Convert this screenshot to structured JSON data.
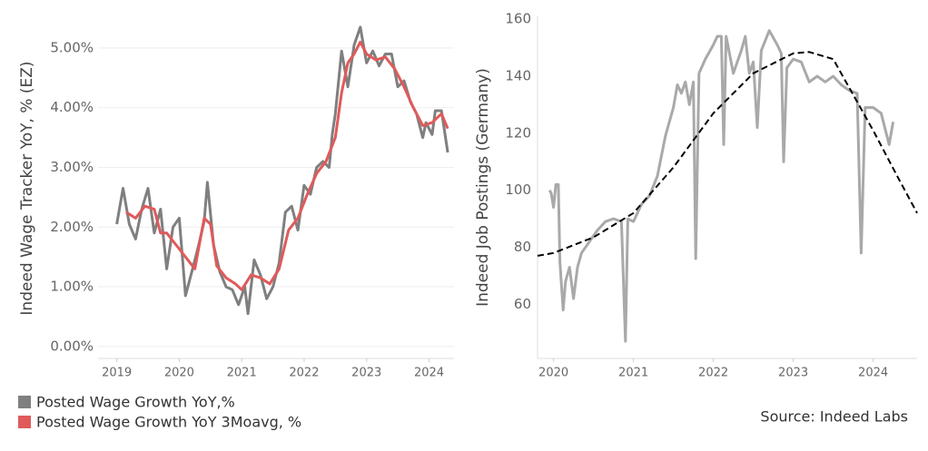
{
  "chart_data": [
    {
      "type": "line",
      "y_label": "Indeed Wage Tracker YoY, % (EZ)",
      "grid": true,
      "legend": "bottom-left",
      "xlim": [
        2018.7,
        2024.4
      ],
      "ylim": [
        -0.2,
        5.5
      ],
      "xticks": [
        2019,
        2020,
        2021,
        2022,
        2023,
        2024
      ],
      "yticks": [
        {
          "value": 0,
          "label": "0.00%"
        },
        {
          "value": 1,
          "label": "1.00%"
        },
        {
          "value": 2,
          "label": "2.00%"
        },
        {
          "value": 3,
          "label": "3.00%"
        },
        {
          "value": 4,
          "label": "4.00%"
        },
        {
          "value": 5,
          "label": "5.00%"
        }
      ],
      "series": [
        {
          "name": "Posted Wage Growth YoY,%",
          "color": "#7f7f7f",
          "x": [
            2019.0,
            2019.1,
            2019.2,
            2019.3,
            2019.4,
            2019.5,
            2019.6,
            2019.7,
            2019.8,
            2019.9,
            2020.0,
            2020.1,
            2020.2,
            2020.3,
            2020.4,
            2020.45,
            2020.55,
            2020.65,
            2020.75,
            2020.85,
            2020.95,
            2021.05,
            2021.1,
            2021.2,
            2021.3,
            2021.4,
            2021.5,
            2021.6,
            2021.7,
            2021.8,
            2021.9,
            2022.0,
            2022.1,
            2022.2,
            2022.3,
            2022.4,
            2022.45,
            2022.5,
            2022.6,
            2022.7,
            2022.8,
            2022.9,
            2023.0,
            2023.1,
            2023.2,
            2023.3,
            2023.4,
            2023.5,
            2023.6,
            2023.7,
            2023.8,
            2023.9,
            2023.95,
            2024.05,
            2024.1,
            2024.2,
            2024.3
          ],
          "values": [
            2.05,
            2.65,
            2.05,
            1.8,
            2.3,
            2.65,
            1.9,
            2.3,
            1.3,
            2.0,
            2.15,
            0.85,
            1.25,
            1.65,
            2.1,
            2.75,
            1.7,
            1.25,
            1.0,
            0.95,
            0.7,
            1.0,
            0.55,
            1.45,
            1.2,
            0.8,
            1.0,
            1.4,
            2.25,
            2.35,
            1.95,
            2.7,
            2.55,
            3.0,
            3.1,
            3.0,
            3.55,
            3.9,
            4.95,
            4.35,
            5.05,
            5.35,
            4.75,
            4.95,
            4.7,
            4.9,
            4.9,
            4.35,
            4.45,
            4.1,
            3.9,
            3.5,
            3.75,
            3.55,
            3.95,
            3.95,
            3.25
          ]
        },
        {
          "name": "Posted Wage Growth YoY 3Moavg, %",
          "color": "#e05a5a",
          "x": [
            2019.15,
            2019.3,
            2019.45,
            2019.6,
            2019.7,
            2019.8,
            2019.95,
            2020.1,
            2020.25,
            2020.4,
            2020.5,
            2020.6,
            2020.75,
            2020.9,
            2021.0,
            2021.15,
            2021.3,
            2021.45,
            2021.6,
            2021.75,
            2021.9,
            2022.05,
            2022.2,
            2022.35,
            2022.5,
            2022.6,
            2022.7,
            2022.8,
            2022.9,
            2023.0,
            2023.15,
            2023.3,
            2023.45,
            2023.6,
            2023.75,
            2023.9,
            2024.05,
            2024.2,
            2024.3
          ],
          "values": [
            2.25,
            2.15,
            2.35,
            2.3,
            1.9,
            1.9,
            1.7,
            1.5,
            1.3,
            2.15,
            2.05,
            1.35,
            1.15,
            1.05,
            0.95,
            1.2,
            1.15,
            1.05,
            1.3,
            1.95,
            2.15,
            2.55,
            2.9,
            3.1,
            3.5,
            4.25,
            4.75,
            4.9,
            5.1,
            4.9,
            4.8,
            4.85,
            4.65,
            4.35,
            4.0,
            3.7,
            3.75,
            3.9,
            3.65
          ]
        }
      ]
    },
    {
      "type": "line",
      "y_label": "Indeed Job Postings (Germany)",
      "grid": false,
      "source": "Source: Indeed Labs",
      "xlim": [
        2019.8,
        2024.55
      ],
      "ylim": [
        41,
        161
      ],
      "xticks": [
        2020,
        2021,
        2022,
        2023,
        2024
      ],
      "yticks": [
        60,
        80,
        100,
        120,
        140,
        160
      ],
      "series": [
        {
          "color": "#a9a9a9",
          "x": [
            2019.95,
            2019.97,
            2020.0,
            2020.03,
            2020.06,
            2020.08,
            2020.12,
            2020.15,
            2020.2,
            2020.25,
            2020.3,
            2020.35,
            2020.45,
            2020.55,
            2020.65,
            2020.75,
            2020.85,
            2020.9,
            2020.93,
            2021.0,
            2021.1,
            2021.2,
            2021.3,
            2021.4,
            2021.5,
            2021.55,
            2021.6,
            2021.65,
            2021.7,
            2021.75,
            2021.78,
            2021.82,
            2021.9,
            2022.0,
            2022.05,
            2022.1,
            2022.13,
            2022.16,
            2022.25,
            2022.35,
            2022.4,
            2022.45,
            2022.5,
            2022.55,
            2022.6,
            2022.7,
            2022.8,
            2022.85,
            2022.88,
            2022.92,
            2023.0,
            2023.1,
            2023.2,
            2023.3,
            2023.4,
            2023.5,
            2023.6,
            2023.7,
            2023.8,
            2023.85,
            2023.9,
            2024.0,
            2024.1,
            2024.2,
            2024.25
          ],
          "values": [
            100,
            99,
            94,
            102,
            102,
            75,
            58,
            68,
            73,
            62,
            73,
            78,
            82,
            86,
            89,
            90,
            89,
            47,
            90,
            89,
            95,
            98,
            105,
            119,
            129,
            137,
            134,
            138,
            130,
            138,
            76,
            141,
            146,
            151,
            154,
            154,
            116,
            154,
            141,
            149,
            154,
            141,
            145,
            122,
            149,
            156,
            151,
            148,
            110,
            143,
            146,
            145,
            138,
            140,
            138,
            140,
            137,
            135,
            134,
            78,
            129,
            129,
            127,
            116,
            124
          ]
        },
        {
          "color": "#000000",
          "line_style": "dashed",
          "x": [
            2019.8,
            2020.0,
            2020.5,
            2021.0,
            2021.5,
            2022.0,
            2022.5,
            2023.0,
            2023.2,
            2023.5,
            2024.0,
            2024.3,
            2024.55
          ],
          "values": [
            77,
            78,
            83.5,
            92,
            108,
            127,
            141,
            148,
            148.5,
            146,
            121,
            105,
            92
          ]
        }
      ]
    }
  ]
}
